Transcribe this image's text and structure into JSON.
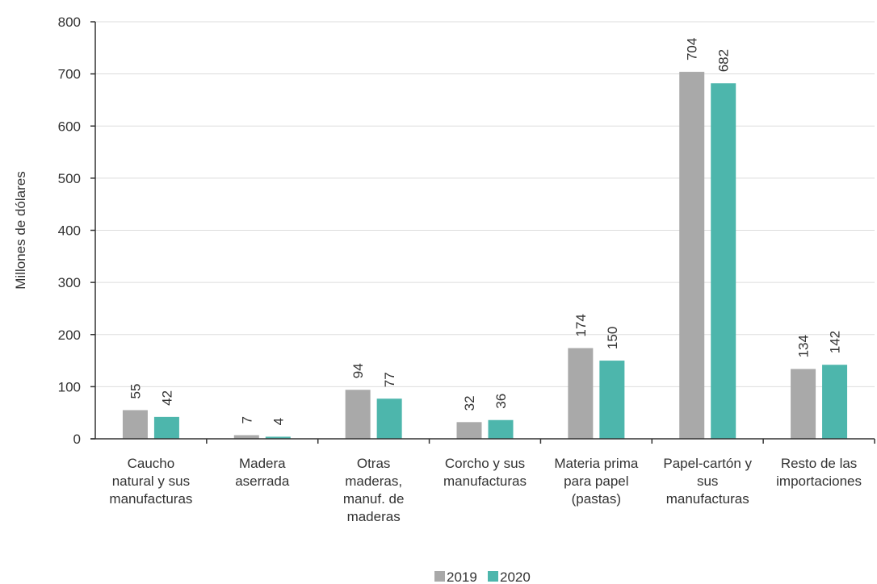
{
  "chart_data": {
    "type": "bar",
    "title": "",
    "xlabel": "",
    "ylabel": "Millones de dólares",
    "ylim": [
      0,
      800
    ],
    "yticks": [
      0,
      100,
      200,
      300,
      400,
      500,
      600,
      700,
      800
    ],
    "grid": true,
    "legend_position": "bottom-center",
    "categories": [
      [
        "Caucho",
        "natural y sus",
        "manufacturas"
      ],
      [
        "Madera",
        "aserrada"
      ],
      [
        "Otras",
        "maderas,",
        "manuf. de",
        "maderas"
      ],
      [
        "Corcho y sus",
        "manufacturas"
      ],
      [
        "Materia prima",
        "para papel",
        "(pastas)"
      ],
      [
        "Papel-cartón y",
        "sus",
        "manufacturas"
      ],
      [
        "Resto de las",
        "importaciones"
      ]
    ],
    "series": [
      {
        "name": "2019",
        "color": "#a9a9a9",
        "values": [
          55,
          7,
          94,
          32,
          174,
          704,
          134
        ]
      },
      {
        "name": "2020",
        "color": "#4db6ac",
        "values": [
          42,
          4,
          77,
          36,
          150,
          682,
          142
        ]
      }
    ]
  }
}
